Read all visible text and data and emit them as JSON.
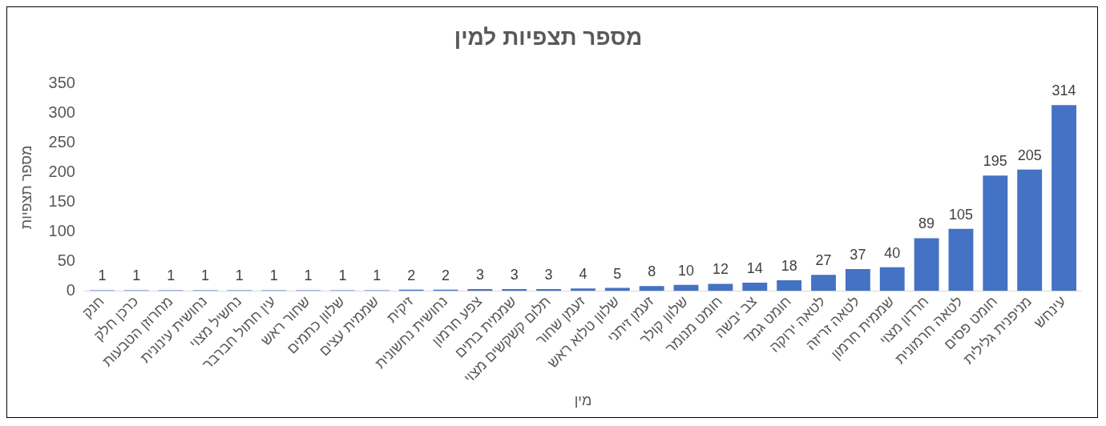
{
  "chart_data": {
    "type": "bar",
    "title": "מספר תצפיות למין",
    "xlabel": "מין",
    "ylabel": "מספר תצפיות",
    "categories": [
      "חנק",
      "כרכן חלק",
      "מחרוזן הטבעות",
      "נחושית עינונית",
      "נחשיל מצוי",
      "עין חתול חברבר",
      "שחור ראש",
      "שלוון כתמים",
      "שממית עצים",
      "זיקית",
      "נחושית נחשונית",
      "צפע חרמון",
      "שממית בתים",
      "תלום קשקשים מצוי",
      "זעמן שחור",
      "שלוון טלוא ראש",
      "זעמן זיתני",
      "שלוון קולר",
      "חומט מנומר",
      "צב יבשה",
      "חומט גמד",
      "לטאה ירוקה",
      "לטאה זריזה",
      "שממית חרמון",
      "חרדון מצוי",
      "לטאה חרמונית",
      "חומט פסים",
      "מניפנית גלילית",
      "עינחש"
    ],
    "values": [
      1,
      1,
      1,
      1,
      1,
      1,
      1,
      1,
      1,
      2,
      2,
      3,
      3,
      3,
      4,
      5,
      8,
      10,
      12,
      14,
      18,
      27,
      37,
      40,
      89,
      105,
      195,
      205,
      314
    ],
    "color": "#4472c4",
    "ylim": [
      0,
      350
    ],
    "yticks": [
      0,
      50,
      100,
      150,
      200,
      250,
      300,
      350
    ],
    "grid": false,
    "data_labels": true
  }
}
